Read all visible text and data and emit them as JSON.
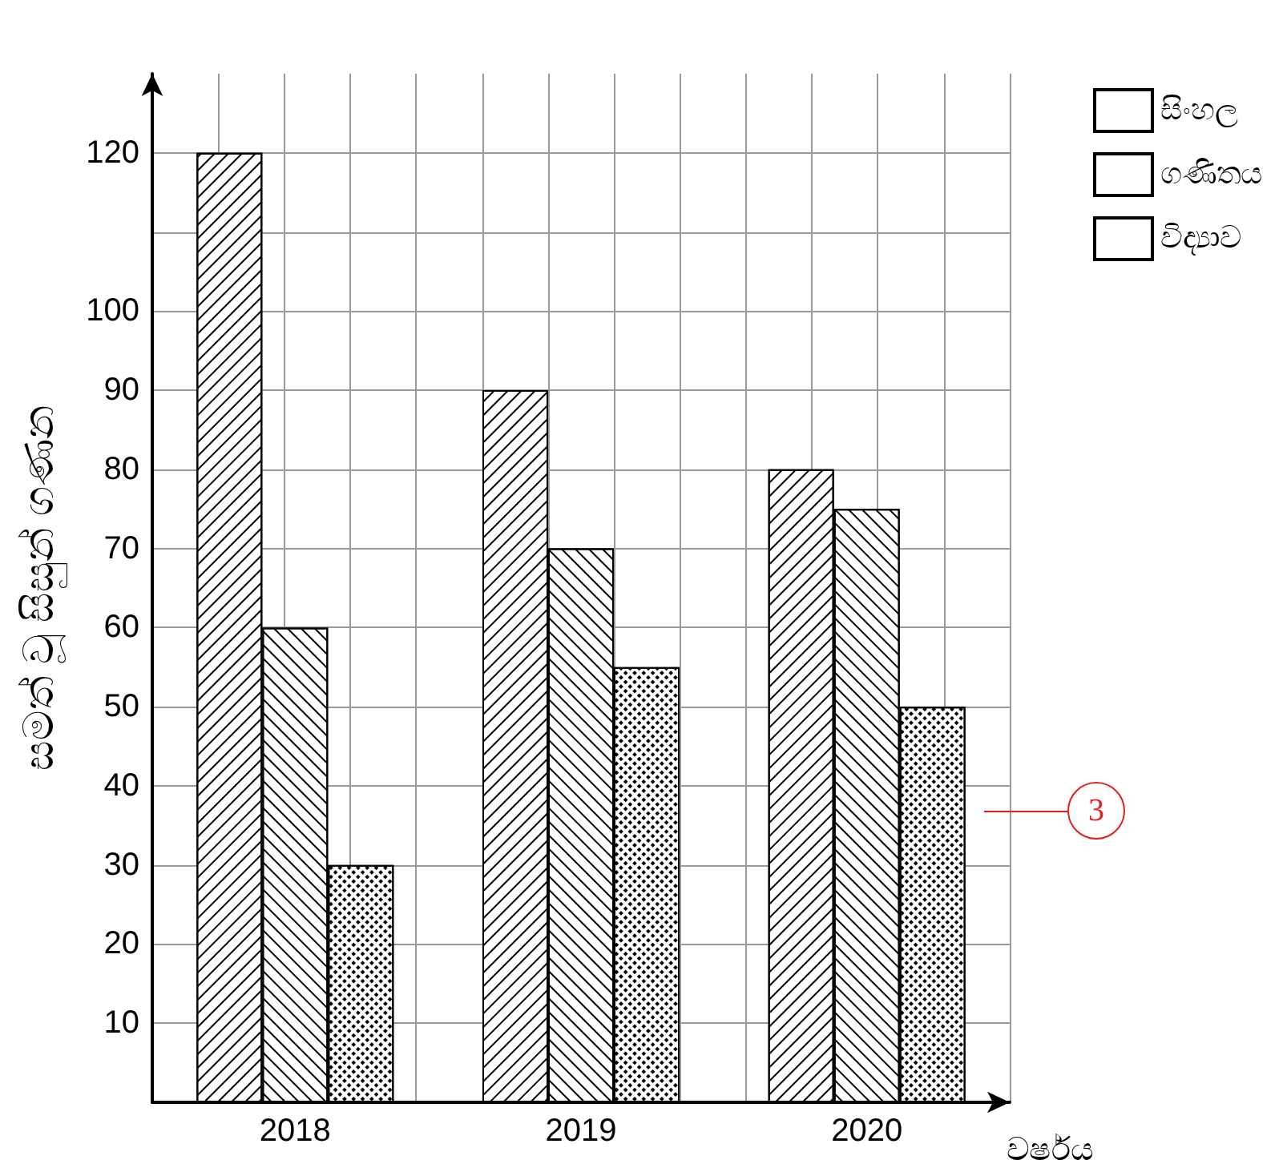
{
  "chart_data": {
    "type": "bar",
    "ylabel": "සමත් වූ සිසුන් ගණන",
    "xlabel": "වර්ෂය",
    "categories": [
      "2018",
      "2019",
      "2020"
    ],
    "series": [
      {
        "name": "සිංහල",
        "color": "#ffffff",
        "values": [
          120,
          90,
          80
        ]
      },
      {
        "name": "ගණිතය",
        "color": "#ffffff",
        "values": [
          60,
          70,
          75
        ]
      },
      {
        "name": "විද්‍යාව",
        "color": "#ffffff",
        "values": [
          30,
          55,
          50
        ]
      }
    ],
    "ylim": [
      0,
      130
    ],
    "yticks": [
      10,
      20,
      30,
      40,
      50,
      60,
      70,
      80,
      90,
      100,
      {
        "value": 110,
        "label": null
      },
      120
    ],
    "grid": true,
    "legend": "top right",
    "annotations": [
      "3"
    ]
  }
}
